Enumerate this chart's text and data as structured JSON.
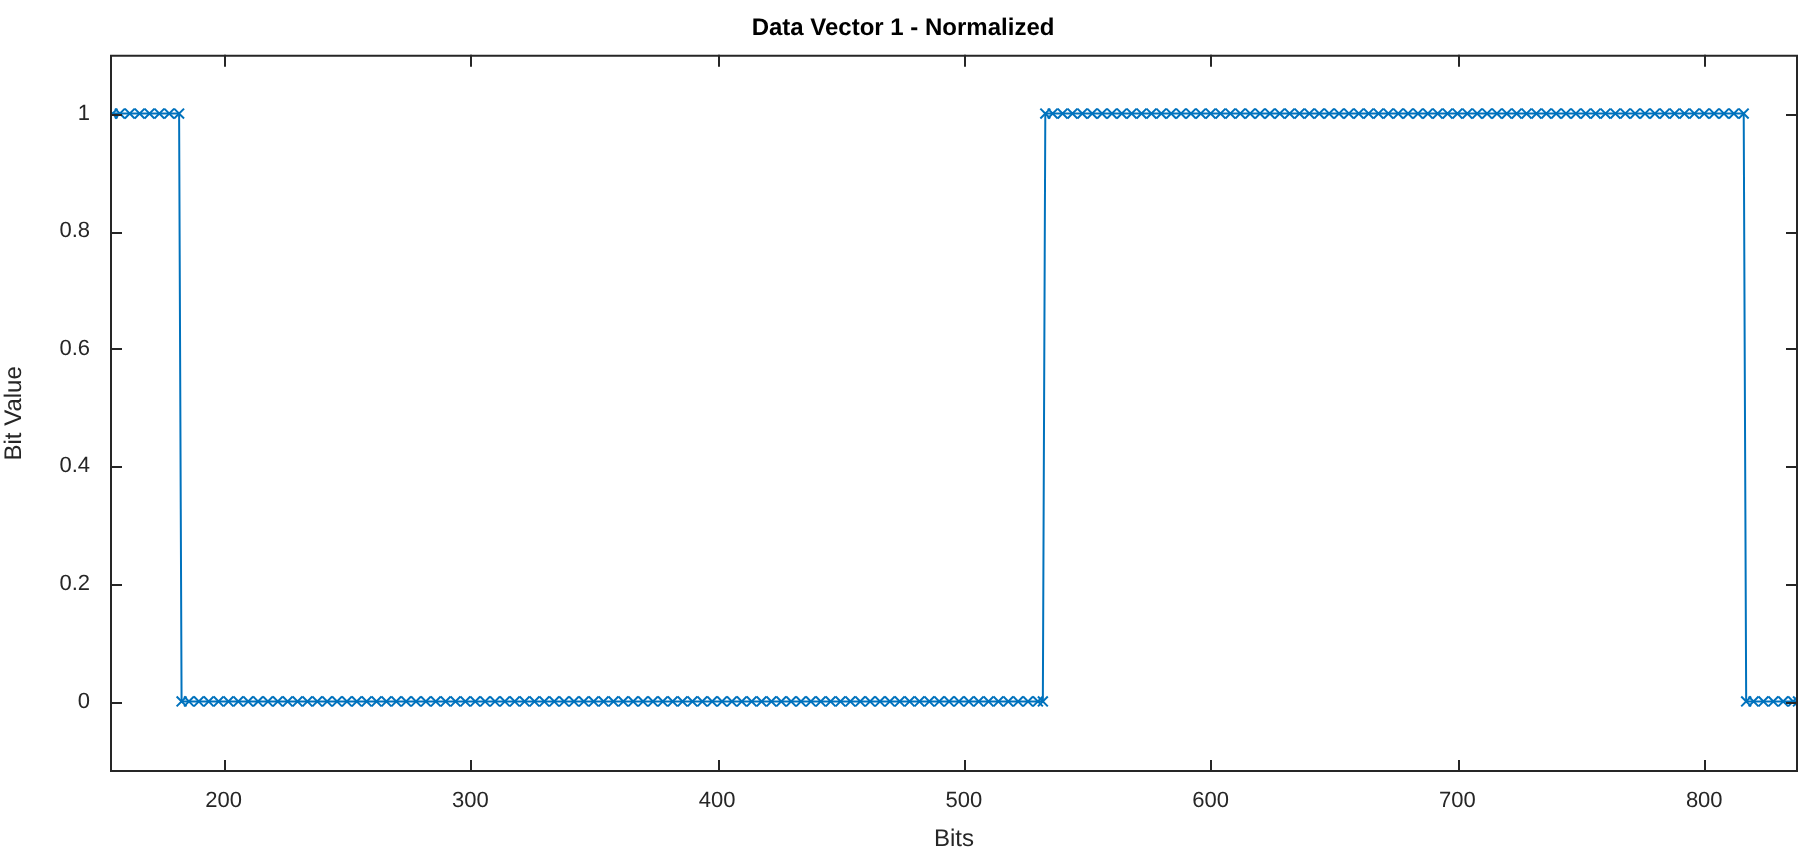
{
  "chart_data": {
    "type": "line",
    "title": "Data Vector 1 - Normalized",
    "xlabel": "Bits",
    "ylabel": "Bit Value",
    "x": [
      155,
      158,
      162,
      166,
      170,
      174,
      178,
      182,
      183,
      186,
      190,
      194,
      198,
      202,
      206,
      210,
      214,
      218,
      222,
      226,
      230,
      234,
      238,
      242,
      246,
      250,
      254,
      258,
      262,
      266,
      270,
      274,
      278,
      282,
      286,
      290,
      294,
      298,
      302,
      306,
      310,
      314,
      318,
      322,
      326,
      330,
      334,
      338,
      342,
      346,
      350,
      354,
      358,
      362,
      366,
      370,
      374,
      378,
      382,
      386,
      390,
      394,
      398,
      402,
      406,
      410,
      414,
      418,
      422,
      426,
      430,
      434,
      438,
      442,
      446,
      450,
      454,
      458,
      462,
      466,
      470,
      474,
      478,
      482,
      486,
      490,
      494,
      498,
      502,
      506,
      510,
      514,
      518,
      522,
      526,
      530,
      532,
      533,
      536,
      540,
      544,
      548,
      552,
      556,
      560,
      564,
      568,
      572,
      576,
      580,
      584,
      588,
      592,
      596,
      600,
      604,
      608,
      612,
      616,
      620,
      624,
      628,
      632,
      636,
      640,
      644,
      648,
      652,
      656,
      660,
      664,
      668,
      672,
      676,
      680,
      684,
      688,
      692,
      696,
      700,
      704,
      708,
      712,
      716,
      720,
      724,
      728,
      732,
      736,
      740,
      744,
      748,
      752,
      756,
      760,
      764,
      768,
      772,
      776,
      780,
      784,
      788,
      792,
      796,
      800,
      804,
      808,
      812,
      816,
      817,
      820,
      824,
      828,
      832,
      836,
      838
    ],
    "series": [
      {
        "color": "#0072bd",
        "values": [
          1,
          1,
          1,
          1,
          1,
          1,
          1,
          1,
          0,
          0,
          0,
          0,
          0,
          0,
          0,
          0,
          0,
          0,
          0,
          0,
          0,
          0,
          0,
          0,
          0,
          0,
          0,
          0,
          0,
          0,
          0,
          0,
          0,
          0,
          0,
          0,
          0,
          0,
          0,
          0,
          0,
          0,
          0,
          0,
          0,
          0,
          0,
          0,
          0,
          0,
          0,
          0,
          0,
          0,
          0,
          0,
          0,
          0,
          0,
          0,
          0,
          0,
          0,
          0,
          0,
          0,
          0,
          0,
          0,
          0,
          0,
          0,
          0,
          0,
          0,
          0,
          0,
          0,
          0,
          0,
          0,
          0,
          0,
          0,
          0,
          0,
          0,
          0,
          0,
          0,
          0,
          0,
          0,
          0,
          0,
          0,
          0,
          1,
          1,
          1,
          1,
          1,
          1,
          1,
          1,
          1,
          1,
          1,
          1,
          1,
          1,
          1,
          1,
          1,
          1,
          1,
          1,
          1,
          1,
          1,
          1,
          1,
          1,
          1,
          1,
          1,
          1,
          1,
          1,
          1,
          1,
          1,
          1,
          1,
          1,
          1,
          1,
          1,
          1,
          1,
          1,
          1,
          1,
          1,
          1,
          1,
          1,
          1,
          1,
          1,
          1,
          1,
          1,
          1,
          1,
          1,
          1,
          1,
          1,
          1,
          1,
          1,
          1,
          1,
          1,
          1,
          1,
          1,
          1,
          0,
          0,
          0,
          0,
          0,
          0,
          0
        ]
      }
    ],
    "xlim": [
      154,
      838
    ],
    "xticks": [
      200,
      300,
      400,
      500,
      600,
      700,
      800
    ],
    "ylim": [
      -0.12,
      1.1
    ],
    "yticks": [
      0,
      0.2,
      0.4,
      0.6,
      0.8,
      1
    ],
    "grid": false,
    "legend": false,
    "marker": "cross",
    "line_style": "solid"
  }
}
